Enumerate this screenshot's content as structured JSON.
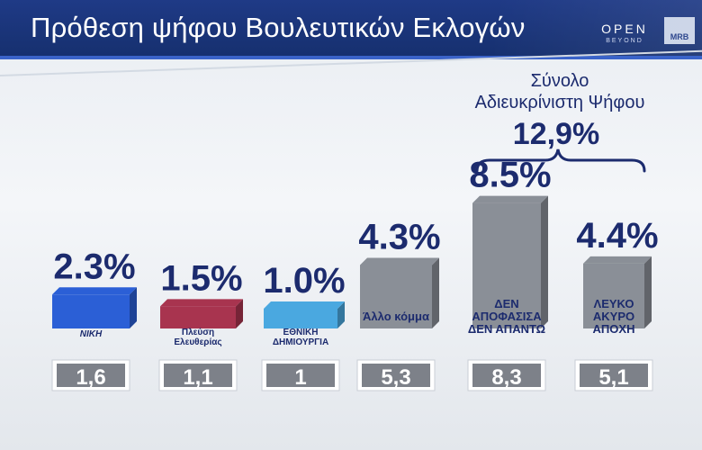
{
  "header": {
    "title": "Πρόθεση ψήφου Βουλευτικών Εκλογών",
    "logo_open": "OPEN",
    "logo_open_sub": "BEYOND",
    "logo_mrb": "MRB"
  },
  "colors": {
    "header_bg": "#1f3a86",
    "value_text": "#1c2b6e",
    "bar_niki": "#2b5fd6",
    "bar_plefsi": "#a8344f",
    "bar_ethniki": "#4aa8e0",
    "bar_grey": "#8a8f97",
    "previous_box": "#7d8189"
  },
  "chart_data": {
    "type": "bar",
    "categories": [
      "ΝΙΚΗ",
      "Πλεύση Ελευθερίας",
      "ΕΘΝΙΚΗ ΔΗΜΙΟΥΡΓΙΑ",
      "Άλλο κόμμα",
      "ΔΕΝ ΑΠΟΦΑΣΙΣΑ ΔΕΝ ΑΠΑΝΤΩ",
      "ΛΕΥΚΟ ΑΚΥΡΟ ΑΠΟΧΗ"
    ],
    "category_lines": [
      [
        "ΝΙΚΗ"
      ],
      [
        "Πλεύση",
        "Ελευθερίας"
      ],
      [
        "ΕΘΝΙΚΗ",
        "ΔΗΜΙΟΥΡΓΙΑ"
      ],
      [
        "Άλλο κόμμα"
      ],
      [
        "ΔΕΝ",
        "ΑΠΟΦΑΣΙΣΑ",
        "ΔΕΝ ΑΠΑΝΤΩ"
      ],
      [
        "ΛΕΥΚΟ",
        "ΑΚΥΡΟ",
        "ΑΠΟΧΗ"
      ]
    ],
    "series": [
      {
        "values": [
          2.3,
          1.5,
          1.0,
          4.3,
          8.5,
          4.4
        ]
      },
      {
        "values": [
          1.6,
          1.1,
          1,
          5.3,
          8.3,
          5.1
        ]
      }
    ],
    "value_labels": [
      "2.3%",
      "1.5%",
      "1.0%",
      "4.3%",
      "8.5%",
      "4.4%"
    ],
    "previous_labels": [
      "1,6",
      "1,1",
      "1",
      "5,3",
      "8,3",
      "5,1"
    ],
    "annotation": {
      "line1": "Σύνολο",
      "line2": "Αδιευκρίνιστη Ψήφου",
      "total": "12,9%"
    },
    "title": "Πρόθεση ψήφου Βουλευτικών Εκλογών"
  }
}
